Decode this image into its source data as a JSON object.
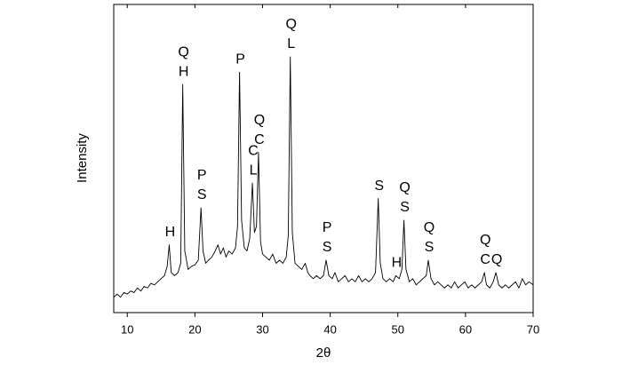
{
  "chart_data": {
    "type": "line",
    "xlabel": "2θ",
    "ylabel": "Intensity",
    "xlim": [
      8,
      70
    ],
    "xticks": [
      10,
      20,
      30,
      40,
      50,
      60,
      70
    ],
    "ylim": [
      0,
      100
    ],
    "series": [
      {
        "color": "#000000",
        "x": [
          8,
          8.5,
          9,
          9.5,
          10,
          10.5,
          11,
          11.5,
          12,
          12.5,
          13,
          13.5,
          14,
          14.5,
          15,
          15.5,
          15.9,
          16.2,
          16.5,
          17,
          17.5,
          17.9,
          18.2,
          18.5,
          19,
          19.5,
          20,
          20.5,
          20.9,
          21.2,
          21.6,
          22,
          22.5,
          23,
          23.4,
          23.8,
          24.2,
          24.6,
          25,
          25.5,
          26,
          26.3,
          26.6,
          26.9,
          27.3,
          27.7,
          28.1,
          28.5,
          28.8,
          29.1,
          29.4,
          29.7,
          30,
          30.5,
          31,
          31.5,
          32,
          32.5,
          33,
          33.5,
          33.8,
          34.1,
          34.4,
          34.8,
          35.3,
          35.8,
          36.3,
          36.7,
          37,
          37.5,
          38,
          38.5,
          39,
          39.4,
          39.8,
          40.3,
          40.7,
          41.2,
          41.7,
          42.2,
          42.7,
          43.2,
          43.7,
          44.2,
          44.7,
          45.2,
          45.7,
          46.2,
          46.7,
          47.1,
          47.4,
          47.8,
          48.3,
          48.8,
          49.3,
          49.7,
          50.2,
          50.6,
          50.9,
          51.2,
          51.7,
          52.2,
          52.7,
          53.2,
          53.7,
          54.2,
          54.5,
          54.9,
          55.4,
          55.9,
          56.4,
          56.9,
          57.4,
          57.9,
          58.4,
          58.9,
          59.4,
          59.9,
          60.4,
          60.9,
          61.4,
          61.9,
          62.4,
          62.8,
          63.1,
          63.6,
          64.1,
          64.5,
          64.9,
          65.4,
          65.9,
          66.4,
          66.9,
          67.4,
          67.9,
          68.4,
          68.9,
          69.4,
          70
        ],
        "values": [
          5,
          6,
          5,
          6.5,
          6,
          7,
          6.5,
          8,
          7,
          8.5,
          8,
          9.5,
          9,
          10,
          11,
          12,
          15,
          22,
          13,
          12,
          13,
          16,
          74,
          20,
          14,
          15,
          15.5,
          17,
          34,
          20,
          16,
          17,
          18,
          20,
          22,
          19,
          21,
          18,
          20,
          19,
          21,
          28,
          78,
          30,
          21,
          20,
          24,
          42,
          26,
          28,
          52,
          23,
          19,
          18,
          17,
          19,
          16,
          17,
          16,
          18,
          25,
          83,
          26,
          16,
          15,
          14,
          16,
          13,
          12,
          11,
          12,
          11,
          12,
          17,
          12,
          11,
          13,
          10,
          11,
          12,
          10,
          11,
          10,
          12,
          10,
          11,
          10,
          11,
          13,
          37,
          16,
          11,
          10,
          11,
          10,
          12,
          11,
          14,
          30,
          14,
          10,
          11,
          9,
          10,
          11,
          12,
          17,
          11,
          9,
          10,
          9,
          8,
          9,
          8,
          10,
          8,
          9,
          10,
          8,
          9,
          8,
          9,
          10,
          13,
          9,
          8,
          10,
          13,
          9,
          8,
          9,
          8,
          9,
          10,
          8,
          11,
          9,
          10,
          9
        ]
      }
    ],
    "annotations": [
      {
        "x": 16.2,
        "lines": [
          "H"
        ]
      },
      {
        "x": 18.2,
        "lines": [
          "Q",
          "H"
        ]
      },
      {
        "x": 20.9,
        "lines": [
          "P",
          "S"
        ]
      },
      {
        "x": 26.6,
        "lines": [
          "P"
        ]
      },
      {
        "x": 28.5,
        "lines": [
          "C",
          "L"
        ]
      },
      {
        "x": 29.4,
        "lines": [
          "Q",
          "C"
        ]
      },
      {
        "x": 34.1,
        "lines": [
          "Q",
          "L"
        ]
      },
      {
        "x": 39.4,
        "lines": [
          "P",
          "S"
        ]
      },
      {
        "x": 47.1,
        "lines": [
          "S"
        ]
      },
      {
        "x": 49.7,
        "lines": [
          "H"
        ]
      },
      {
        "x": 50.9,
        "lines": [
          "Q",
          "S"
        ]
      },
      {
        "x": 54.5,
        "lines": [
          "Q",
          "S"
        ]
      },
      {
        "x": 62.8,
        "lines": [
          "Q",
          "C"
        ]
      },
      {
        "x": 64.5,
        "lines": [
          "Q"
        ]
      }
    ]
  }
}
